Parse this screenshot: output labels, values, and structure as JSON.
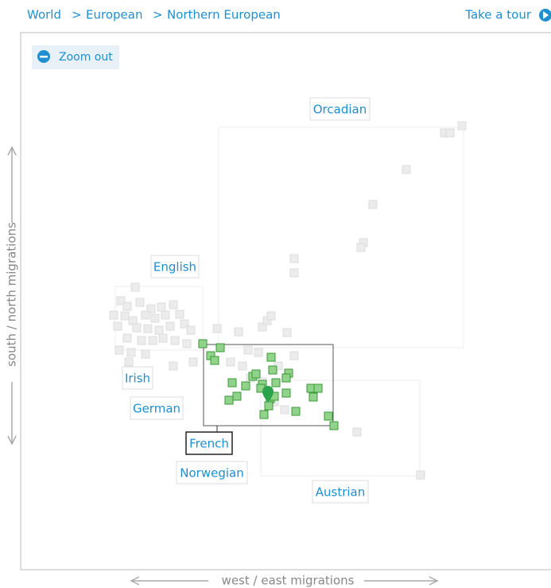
{
  "breadcrumb": {
    "items": [
      "World",
      "European",
      "Northern European"
    ],
    "separator": ">"
  },
  "tour_link": "Take a tour",
  "zoom_button": "Zoom out",
  "axes": {
    "x_label": "west / east migrations",
    "y_label": "south / north migrations"
  },
  "groups": [
    "Orcadian",
    "English",
    "Irish",
    "German",
    "French",
    "Norwegian",
    "Austrian"
  ]
}
